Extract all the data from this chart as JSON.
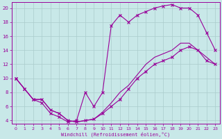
{
  "xlabel": "Windchill (Refroidissement éolien,°C)",
  "bg_color": "#c8e8e8",
  "line_color": "#990099",
  "grid_color": "#aacccc",
  "xlim_min": -0.5,
  "xlim_max": 23.5,
  "ylim_min": 3.5,
  "ylim_max": 20.8,
  "xticks": [
    0,
    1,
    2,
    3,
    4,
    5,
    6,
    7,
    8,
    9,
    10,
    11,
    12,
    13,
    14,
    15,
    16,
    17,
    18,
    19,
    20,
    21,
    22,
    23
  ],
  "yticks": [
    4,
    6,
    8,
    10,
    12,
    14,
    16,
    18,
    20
  ],
  "line1_x": [
    0,
    1,
    2,
    3,
    4,
    5,
    6,
    7,
    8,
    9,
    10,
    11,
    12,
    13,
    14,
    15,
    16,
    17,
    18,
    19,
    20,
    21,
    22,
    23
  ],
  "line1_y": [
    10,
    8.5,
    7,
    6.5,
    5,
    4.5,
    3.8,
    4.0,
    8.0,
    6.0,
    8.0,
    17.5,
    19.0,
    18.0,
    19.0,
    19.5,
    20.0,
    20.3,
    20.5,
    20.0,
    20.0,
    19.0,
    16.5,
    14.0
  ],
  "line2_x": [
    0,
    1,
    2,
    3,
    4,
    5,
    6,
    7,
    8,
    9,
    10,
    11,
    12,
    13,
    14,
    15,
    16,
    17,
    18,
    19,
    20,
    21,
    22,
    23
  ],
  "line2_y": [
    10,
    8.5,
    7,
    7,
    5.5,
    5.0,
    4.0,
    3.8,
    4.0,
    4.2,
    5.0,
    6.0,
    7.0,
    8.5,
    10.0,
    11.0,
    12.0,
    12.5,
    13.0,
    14.0,
    14.5,
    14.0,
    12.5,
    12.0
  ],
  "line3_x": [
    0,
    1,
    2,
    3,
    4,
    5,
    6,
    7,
    8,
    9,
    10,
    11,
    12,
    13,
    14,
    15,
    16,
    17,
    18,
    19,
    20,
    21,
    22,
    23
  ],
  "line3_y": [
    10,
    8.5,
    7,
    7,
    5.5,
    5.0,
    4.0,
    3.8,
    4.0,
    4.2,
    5.2,
    6.5,
    8.0,
    9.0,
    10.5,
    12.0,
    13.0,
    13.5,
    14.0,
    15.0,
    15.0,
    14.0,
    13.0,
    12.0
  ]
}
